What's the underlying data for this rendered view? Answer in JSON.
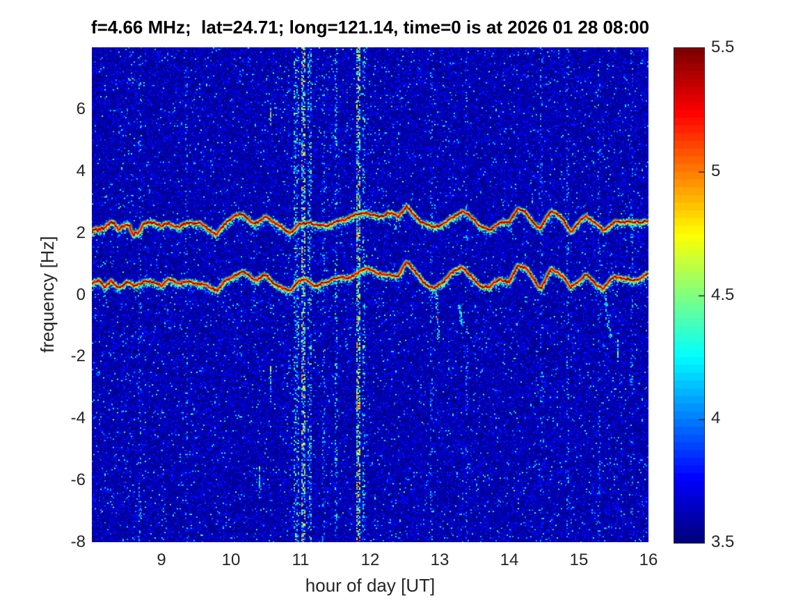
{
  "figure": {
    "background": "#ffffff",
    "text_color": "#262626",
    "title_color": "#000000"
  },
  "chart_data": {
    "type": "heatmap",
    "title": "f=4.66 MHz;  lat=24.71; long=121.14, time=0 is at 2026 01 28 08:00",
    "xlabel": "hour of day [UT]",
    "ylabel": "frequency [Hz]",
    "xlim": [
      8,
      16
    ],
    "ylim": [
      -8,
      8
    ],
    "xticks": [
      "9",
      "10",
      "11",
      "12",
      "13",
      "14",
      "15",
      "16"
    ],
    "yticks": [
      "6",
      "4",
      "2",
      "0",
      "-2",
      "-4",
      "-6",
      "-8"
    ],
    "grid": false,
    "colormap": "jet",
    "background_value": 3.55,
    "colorbar": {
      "min": 3.5,
      "max": 5.5,
      "ticks": [
        "5.5",
        "5",
        "4.5",
        "4",
        "3.5"
      ],
      "position": "right"
    },
    "series": [
      {
        "name": "upper Doppler trace",
        "keypoints": [
          [
            8.0,
            2.12
          ],
          [
            8.1,
            2.3
          ],
          [
            8.18,
            2.1
          ],
          [
            8.28,
            2.32
          ],
          [
            8.38,
            2.12
          ],
          [
            8.5,
            2.25
          ],
          [
            8.6,
            2.1
          ],
          [
            8.75,
            2.28
          ],
          [
            8.9,
            2.3
          ],
          [
            9.0,
            2.2
          ],
          [
            9.1,
            2.32
          ],
          [
            9.25,
            2.22
          ],
          [
            9.4,
            2.3
          ],
          [
            9.55,
            2.28
          ],
          [
            9.68,
            2.12
          ],
          [
            9.8,
            2.0
          ],
          [
            9.92,
            2.3
          ],
          [
            10.05,
            2.52
          ],
          [
            10.15,
            2.58
          ],
          [
            10.28,
            2.42
          ],
          [
            10.38,
            2.35
          ],
          [
            10.5,
            2.52
          ],
          [
            10.62,
            2.3
          ],
          [
            10.75,
            2.12
          ],
          [
            10.85,
            2.05
          ],
          [
            10.98,
            2.28
          ],
          [
            11.1,
            2.35
          ],
          [
            11.22,
            2.2
          ],
          [
            11.35,
            2.26
          ],
          [
            11.5,
            2.38
          ],
          [
            11.65,
            2.45
          ],
          [
            11.8,
            2.55
          ],
          [
            11.95,
            2.68
          ],
          [
            12.1,
            2.55
          ],
          [
            12.25,
            2.62
          ],
          [
            12.4,
            2.5
          ],
          [
            12.52,
            2.88
          ],
          [
            12.62,
            2.6
          ],
          [
            12.75,
            2.35
          ],
          [
            12.9,
            2.12
          ],
          [
            13.05,
            2.3
          ],
          [
            13.2,
            2.55
          ],
          [
            13.32,
            2.72
          ],
          [
            13.45,
            2.45
          ],
          [
            13.6,
            2.18
          ],
          [
            13.72,
            2.1
          ],
          [
            13.85,
            2.38
          ],
          [
            14.0,
            2.3
          ],
          [
            14.12,
            2.78
          ],
          [
            14.22,
            2.68
          ],
          [
            14.35,
            2.35
          ],
          [
            14.45,
            2.15
          ],
          [
            14.6,
            2.68
          ],
          [
            14.72,
            2.55
          ],
          [
            14.88,
            2.08
          ],
          [
            15.0,
            2.35
          ],
          [
            15.1,
            2.5
          ],
          [
            15.22,
            2.35
          ],
          [
            15.35,
            2.05
          ],
          [
            15.5,
            2.42
          ],
          [
            15.62,
            2.3
          ],
          [
            15.75,
            2.35
          ],
          [
            15.88,
            2.3
          ],
          [
            16.0,
            2.45
          ]
        ]
      },
      {
        "name": "lower Doppler trace",
        "keypoints": [
          [
            8.0,
            0.3
          ],
          [
            8.1,
            0.45
          ],
          [
            8.18,
            0.25
          ],
          [
            8.28,
            0.45
          ],
          [
            8.38,
            0.28
          ],
          [
            8.5,
            0.4
          ],
          [
            8.6,
            0.25
          ],
          [
            8.75,
            0.42
          ],
          [
            8.9,
            0.45
          ],
          [
            9.0,
            0.32
          ],
          [
            9.1,
            0.45
          ],
          [
            9.25,
            0.35
          ],
          [
            9.4,
            0.45
          ],
          [
            9.55,
            0.4
          ],
          [
            9.68,
            0.22
          ],
          [
            9.8,
            0.12
          ],
          [
            9.92,
            0.45
          ],
          [
            10.05,
            0.68
          ],
          [
            10.15,
            0.75
          ],
          [
            10.28,
            0.55
          ],
          [
            10.38,
            0.45
          ],
          [
            10.5,
            0.65
          ],
          [
            10.62,
            0.4
          ],
          [
            10.75,
            0.18
          ],
          [
            10.85,
            0.12
          ],
          [
            10.98,
            0.4
          ],
          [
            11.1,
            0.5
          ],
          [
            11.22,
            0.3
          ],
          [
            11.35,
            0.38
          ],
          [
            11.5,
            0.5
          ],
          [
            11.65,
            0.58
          ],
          [
            11.8,
            0.68
          ],
          [
            11.95,
            0.85
          ],
          [
            12.1,
            0.62
          ],
          [
            12.25,
            0.72
          ],
          [
            12.4,
            0.6
          ],
          [
            12.52,
            1.08
          ],
          [
            12.62,
            0.75
          ],
          [
            12.75,
            0.45
          ],
          [
            12.9,
            0.22
          ],
          [
            13.05,
            0.45
          ],
          [
            13.2,
            0.7
          ],
          [
            13.32,
            0.92
          ],
          [
            13.45,
            0.6
          ],
          [
            13.6,
            0.3
          ],
          [
            13.72,
            0.2
          ],
          [
            13.85,
            0.5
          ],
          [
            14.0,
            0.42
          ],
          [
            14.12,
            1.0
          ],
          [
            14.22,
            0.88
          ],
          [
            14.35,
            0.45
          ],
          [
            14.45,
            0.2
          ],
          [
            14.6,
            0.88
          ],
          [
            14.72,
            0.72
          ],
          [
            14.88,
            0.2
          ],
          [
            15.0,
            0.45
          ],
          [
            15.1,
            0.65
          ],
          [
            15.22,
            0.45
          ],
          [
            15.35,
            0.15
          ],
          [
            15.5,
            0.58
          ],
          [
            15.62,
            0.5
          ],
          [
            15.75,
            0.55
          ],
          [
            15.88,
            0.5
          ],
          [
            16.0,
            0.68
          ]
        ]
      }
    ],
    "vertical_streaks": [
      {
        "hour": 8.68,
        "width": 0.02,
        "intensity": 0.15
      },
      {
        "hour": 9.35,
        "width": 0.02,
        "intensity": 0.12
      },
      {
        "hour": 10.93,
        "width": 0.06,
        "intensity": 0.45
      },
      {
        "hour": 11.03,
        "width": 0.035,
        "intensity": 0.9
      },
      {
        "hour": 11.12,
        "width": 0.03,
        "intensity": 0.45
      },
      {
        "hour": 11.32,
        "width": 0.02,
        "intensity": 0.18
      },
      {
        "hour": 11.5,
        "width": 0.025,
        "intensity": 0.35
      },
      {
        "hour": 11.82,
        "width": 0.04,
        "intensity": 1.0
      },
      {
        "hour": 11.9,
        "width": 0.025,
        "intensity": 0.4
      },
      {
        "hour": 12.87,
        "width": 0.02,
        "intensity": 0.15
      },
      {
        "hour": 13.38,
        "width": 0.02,
        "intensity": 0.12
      },
      {
        "hour": 14.45,
        "width": 0.02,
        "intensity": 0.12
      },
      {
        "hour": 14.83,
        "width": 0.02,
        "intensity": 0.15
      },
      {
        "hour": 15.28,
        "width": 0.02,
        "intensity": 0.15
      },
      {
        "hour": 15.75,
        "width": 0.02,
        "intensity": 0.12
      }
    ],
    "vertical_dashes": [
      {
        "hour": 10.56,
        "y1": 5.5,
        "y2": 6.2,
        "intensity": 0.7
      },
      {
        "hour": 10.56,
        "y1": -2.3,
        "y2": -3.5,
        "intensity": 0.5
      },
      {
        "hour": 15.55,
        "y1": -1.4,
        "y2": -2.2,
        "intensity": 0.4
      },
      {
        "hour": 10.4,
        "y1": -5.5,
        "y2": -6.3,
        "intensity": 0.3
      }
    ],
    "wisps": [
      {
        "x1": 12.94,
        "y1": 0.2,
        "x2": 12.98,
        "y2": -1.5,
        "intensity": 0.6
      },
      {
        "x1": 15.37,
        "y1": 0.1,
        "x2": 15.44,
        "y2": -1.4,
        "intensity": 0.45
      },
      {
        "x1": 13.28,
        "y1": -0.3,
        "x2": 13.32,
        "y2": -1.0,
        "intensity": 0.3
      }
    ],
    "red_blobs": [
      [
        12.96,
        -0.75
      ]
    ]
  }
}
